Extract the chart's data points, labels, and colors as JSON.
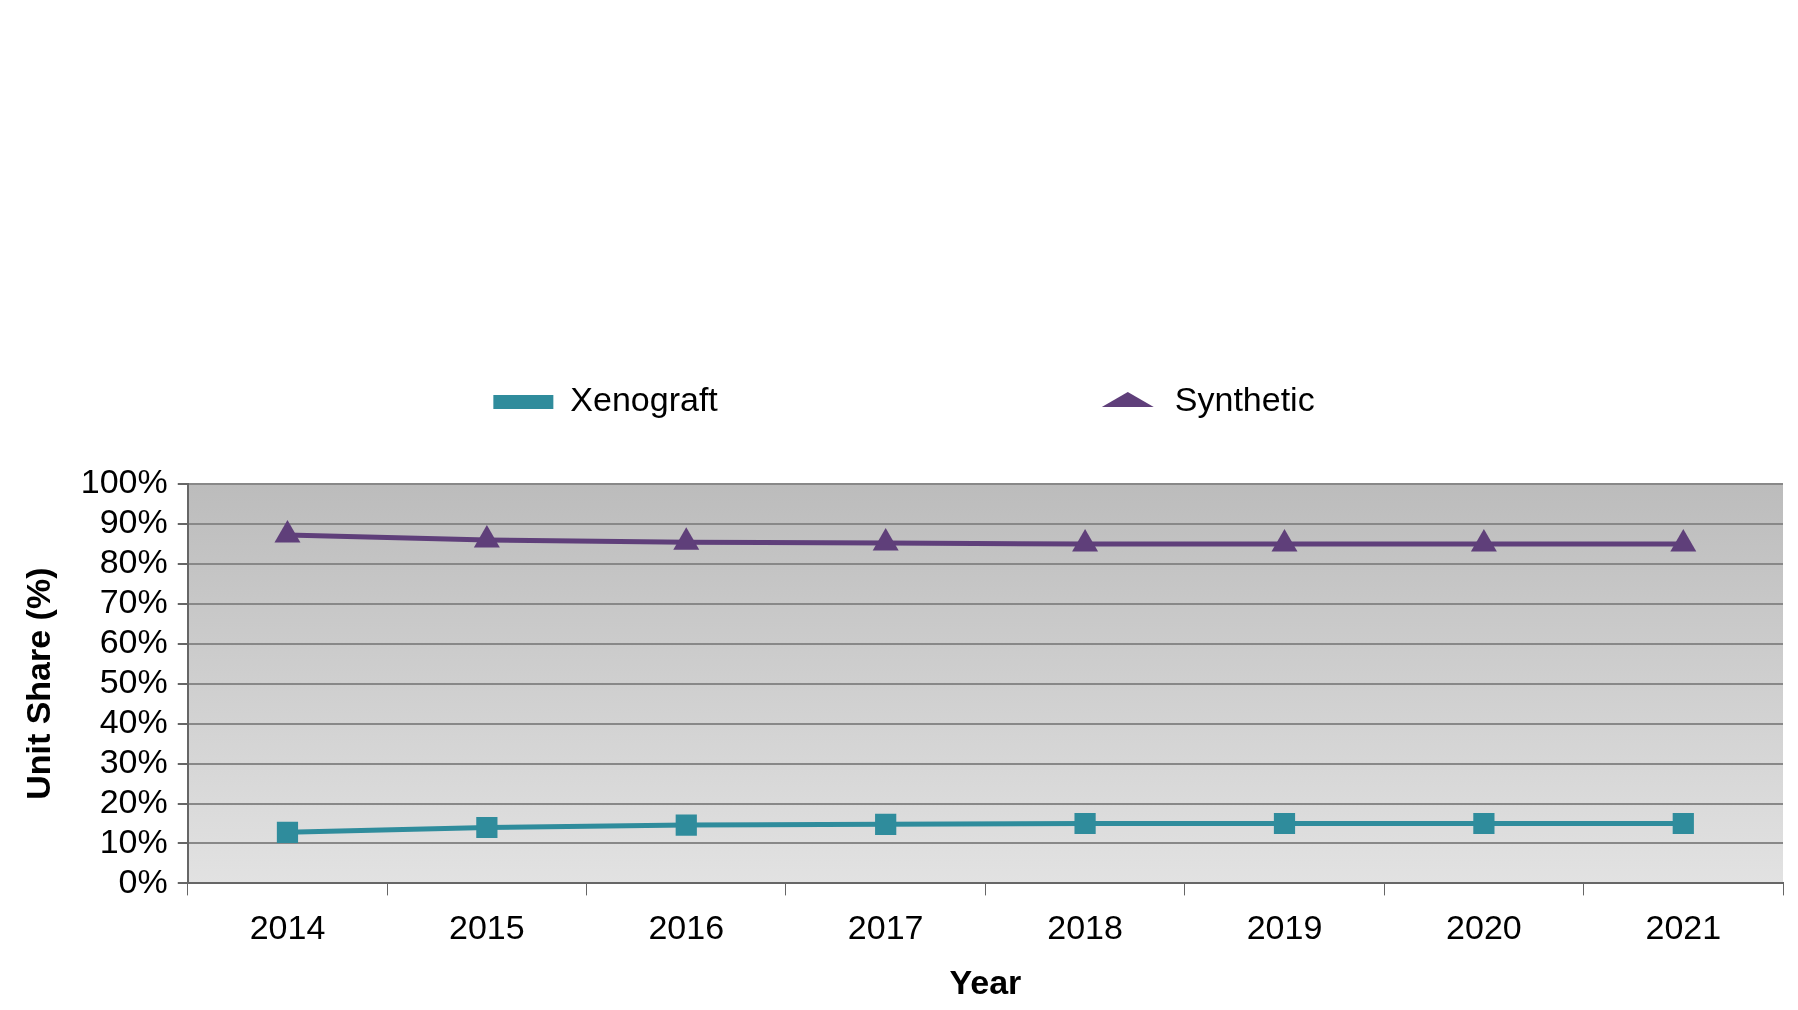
{
  "chart_data": {
    "type": "line",
    "xlabel": "Year",
    "ylabel": "Unit Share (%)",
    "categories": [
      "2014",
      "2015",
      "2016",
      "2017",
      "2018",
      "2019",
      "2020",
      "2021"
    ],
    "series": [
      {
        "name": "Xenograft",
        "color": "#2f8c9c",
        "marker": "square",
        "values": [
          12.8,
          14.0,
          14.6,
          14.8,
          15.0,
          15.0,
          15.0,
          15.0
        ]
      },
      {
        "name": "Synthetic",
        "color": "#5f3f7a",
        "marker": "triangle",
        "values": [
          87.2,
          86.0,
          85.4,
          85.2,
          85.0,
          85.0,
          85.0,
          85.0
        ]
      }
    ],
    "ylim": [
      0,
      100
    ],
    "yticks": [
      {
        "value": 0,
        "label": "0%"
      },
      {
        "value": 10,
        "label": "10%"
      },
      {
        "value": 20,
        "label": "20%"
      },
      {
        "value": 30,
        "label": "30%"
      },
      {
        "value": 40,
        "label": "40%"
      },
      {
        "value": 50,
        "label": "50%"
      },
      {
        "value": 60,
        "label": "60%"
      },
      {
        "value": 70,
        "label": "70%"
      },
      {
        "value": 80,
        "label": "80%"
      },
      {
        "value": 90,
        "label": "90%"
      },
      {
        "value": 100,
        "label": "100%"
      }
    ],
    "grid": "y",
    "legend": "top"
  }
}
